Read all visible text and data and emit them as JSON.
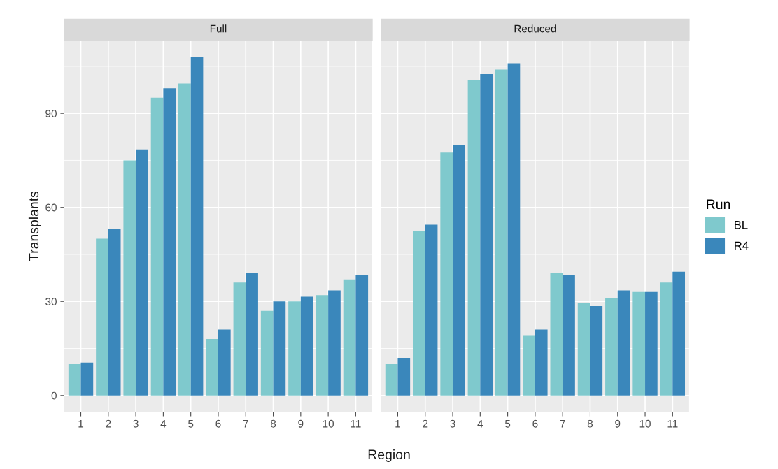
{
  "chart_data": [
    {
      "type": "bar",
      "title": "Full",
      "xlabel": "Region",
      "ylabel": "Transplants",
      "categories": [
        "1",
        "2",
        "3",
        "4",
        "5",
        "6",
        "7",
        "8",
        "9",
        "10",
        "11"
      ],
      "series": [
        {
          "color": "#7fc9cd",
          "values": [
            10,
            50,
            75,
            95,
            99.5,
            18,
            36,
            27,
            30,
            32,
            37
          ]
        },
        {
          "color": "#3a87bb",
          "values": [
            10.5,
            53,
            78.5,
            98,
            108,
            21,
            39,
            30,
            31.5,
            33.5,
            38.5
          ]
        }
      ],
      "ylim": [
        -5.4,
        113.4
      ],
      "yticks": [
        0,
        30,
        60,
        90
      ],
      "grid": true
    },
    {
      "type": "bar",
      "title": "Reduced",
      "categories": [
        "1",
        "2",
        "3",
        "4",
        "5",
        "6",
        "7",
        "8",
        "9",
        "10",
        "11"
      ],
      "series": [
        {
          "name": "BL",
          "color": "#7fc9cd",
          "values": [
            10,
            52.5,
            77.5,
            100.5,
            104,
            19,
            39,
            29.5,
            31,
            33,
            36
          ]
        },
        {
          "name": "R4",
          "color": "#3a87bb",
          "values": [
            12,
            54.5,
            80,
            102.5,
            106,
            21,
            38.5,
            28.5,
            33.5,
            33,
            39.5
          ]
        }
      ],
      "ylim": [
        -5.4,
        113.4
      ],
      "yticks": [
        0,
        30,
        60,
        90
      ],
      "tick_labels": "x",
      "grid": true,
      "legend": "right",
      "legend_title": "Run"
    }
  ]
}
